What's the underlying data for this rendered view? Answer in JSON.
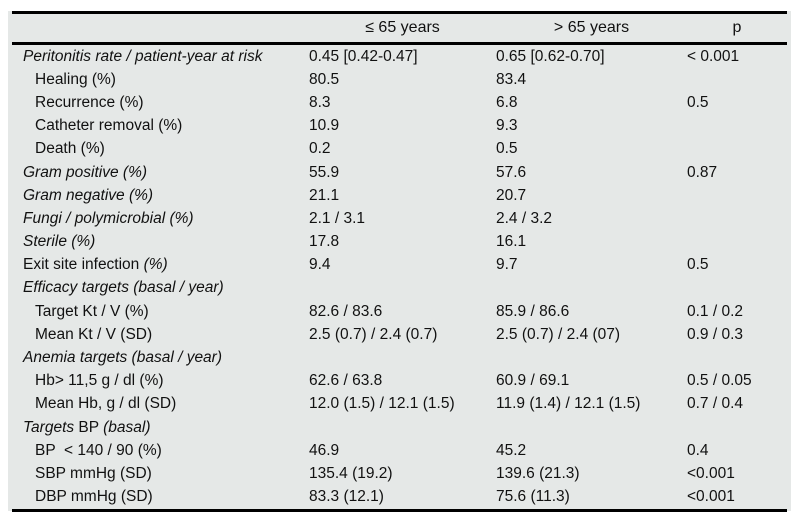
{
  "colors": {
    "panel_bg": "#e5e8e7",
    "rule": "#000000",
    "text": "#111111"
  },
  "table": {
    "headers": {
      "col1": "",
      "le65": "≤ 65 years",
      "gt65": "> 65 years",
      "p": "p"
    },
    "rows": [
      {
        "indent": false,
        "label_parts": [
          {
            "text": "Peritonitis rate / patient-year at risk",
            "italic": true
          }
        ],
        "le65": "0.45 [0.42-0.47]",
        "gt65": "0.65 [0.62-0.70]",
        "p": "< 0.001"
      },
      {
        "indent": true,
        "label_parts": [
          {
            "text": "Healing (%)",
            "italic": false
          }
        ],
        "le65": "80.5",
        "gt65": "83.4",
        "p": ""
      },
      {
        "indent": true,
        "label_parts": [
          {
            "text": "Recurrence (%)",
            "italic": false
          }
        ],
        "le65": "8.3",
        "gt65": "6.8",
        "p": "0.5"
      },
      {
        "indent": true,
        "label_parts": [
          {
            "text": "Catheter removal (%)",
            "italic": false
          }
        ],
        "le65": "10.9",
        "gt65": "9.3",
        "p": ""
      },
      {
        "indent": true,
        "label_parts": [
          {
            "text": "Death (%)",
            "italic": false
          }
        ],
        "le65": "0.2",
        "gt65": "0.5",
        "p": ""
      },
      {
        "indent": false,
        "label_parts": [
          {
            "text": "Gram positive (%)",
            "italic": true
          }
        ],
        "le65": "55.9",
        "gt65": "57.6",
        "p": "0.87"
      },
      {
        "indent": false,
        "label_parts": [
          {
            "text": "Gram negative (%)",
            "italic": true
          }
        ],
        "le65": "21.1",
        "gt65": "20.7",
        "p": ""
      },
      {
        "indent": false,
        "label_parts": [
          {
            "text": "Fungi / polymicrobial (%)",
            "italic": true
          }
        ],
        "le65": "2.1 / 3.1",
        "gt65": "2.4 / 3.2",
        "p": ""
      },
      {
        "indent": false,
        "label_parts": [
          {
            "text": "Sterile (%)",
            "italic": true
          }
        ],
        "le65": "17.8",
        "gt65": "16.1",
        "p": ""
      },
      {
        "indent": false,
        "label_parts": [
          {
            "text": "Exit site infection ",
            "italic": false
          },
          {
            "text": "(%)",
            "italic": true
          }
        ],
        "le65": "9.4",
        "gt65": "9.7",
        "p": "0.5"
      },
      {
        "indent": false,
        "label_parts": [
          {
            "text": "Efficacy targets (basal / year)",
            "italic": true
          }
        ],
        "le65": "",
        "gt65": "",
        "p": ""
      },
      {
        "indent": true,
        "label_parts": [
          {
            "text": "Target Kt / V (%)",
            "italic": false
          }
        ],
        "le65": "82.6 / 83.6",
        "gt65": "85.9 / 86.6",
        "p": "0.1 / 0.2"
      },
      {
        "indent": true,
        "label_parts": [
          {
            "text": "Mean Kt / V (SD)",
            "italic": false
          }
        ],
        "le65": "2.5 (0.7) / 2.4 (0.7)",
        "gt65": "2.5 (0.7) / 2.4 (07)",
        "p": "0.9 / 0.3"
      },
      {
        "indent": false,
        "label_parts": [
          {
            "text": "Anemia targets (basal / year)",
            "italic": true
          }
        ],
        "le65": "",
        "gt65": "",
        "p": ""
      },
      {
        "indent": true,
        "label_parts": [
          {
            "text": "Hb> 11,5 g / dl (%)",
            "italic": false
          }
        ],
        "le65": "62.6 / 63.8",
        "gt65": "60.9 / 69.1",
        "p": "0.5 / 0.05"
      },
      {
        "indent": true,
        "label_parts": [
          {
            "text": "Mean Hb, g / dl (SD)",
            "italic": false
          }
        ],
        "le65": "12.0 (1.5) / 12.1 (1.5)",
        "gt65": "11.9 (1.4) / 12.1 (1.5)",
        "p": "0.7 / 0.4"
      },
      {
        "indent": false,
        "label_parts": [
          {
            "text": "Targets",
            "italic": true
          },
          {
            "text": " BP ",
            "italic": false
          },
          {
            "text": "(basal)",
            "italic": true
          }
        ],
        "le65": "",
        "gt65": "",
        "p": ""
      },
      {
        "indent": true,
        "label_parts": [
          {
            "text": "BP  < 140 / 90 (%)",
            "italic": false
          }
        ],
        "le65": "46.9",
        "gt65": "45.2",
        "p": "0.4"
      },
      {
        "indent": true,
        "label_parts": [
          {
            "text": "SBP mmHg (SD)",
            "italic": false
          }
        ],
        "le65": "135.4 (19.2)",
        "gt65": "139.6 (21.3)",
        "p": "<0.001"
      },
      {
        "indent": true,
        "label_parts": [
          {
            "text": "DBP mmHg (SD)",
            "italic": false
          }
        ],
        "le65": "83.3 (12.1)",
        "gt65": "75.6 (11.3)",
        "p": "<0.001"
      }
    ]
  }
}
